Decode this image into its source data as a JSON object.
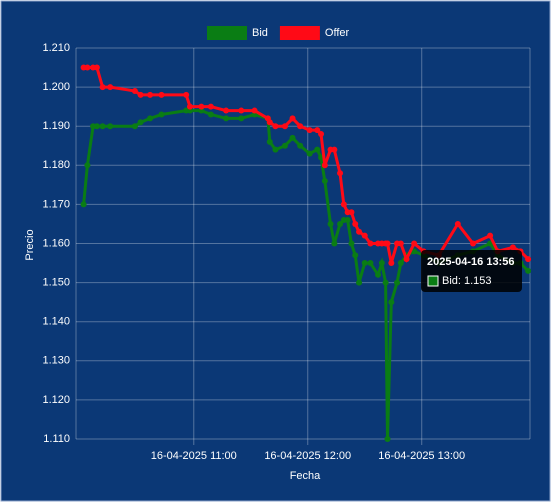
{
  "chart_data": {
    "type": "line",
    "x_label": "Fecha",
    "y_label": "Precio",
    "x": [
      "2025-04-16 10:02",
      "2025-04-16 10:04",
      "2025-04-16 10:07",
      "2025-04-16 10:09",
      "2025-04-16 10:12",
      "2025-04-16 10:16",
      "2025-04-16 10:29",
      "2025-04-16 10:32",
      "2025-04-16 10:37",
      "2025-04-16 10:43",
      "2025-04-16 10:56",
      "2025-04-16 10:58",
      "2025-04-16 11:04",
      "2025-04-16 11:09",
      "2025-04-16 11:17",
      "2025-04-16 11:25",
      "2025-04-16 11:32",
      "2025-04-16 11:39",
      "2025-04-16 11:40",
      "2025-04-16 11:43",
      "2025-04-16 11:48",
      "2025-04-16 11:52",
      "2025-04-16 11:56",
      "2025-04-16 12:01",
      "2025-04-16 12:05",
      "2025-04-16 12:07",
      "2025-04-16 12:09",
      "2025-04-16 12:12",
      "2025-04-16 12:14",
      "2025-04-16 12:17",
      "2025-04-16 12:19",
      "2025-04-16 12:21",
      "2025-04-16 12:23",
      "2025-04-16 12:25",
      "2025-04-16 12:27",
      "2025-04-16 12:30",
      "2025-04-16 12:33",
      "2025-04-16 12:37",
      "2025-04-16 12:39",
      "2025-04-16 12:41",
      "2025-04-16 12:42",
      "2025-04-16 12:44",
      "2025-04-16 12:47",
      "2025-04-16 12:49",
      "2025-04-16 12:52",
      "2025-04-16 12:56",
      "2025-04-16 13:01",
      "2025-04-16 13:09",
      "2025-04-16 13:19",
      "2025-04-16 13:27",
      "2025-04-16 13:36",
      "2025-04-16 13:40",
      "2025-04-16 13:48",
      "2025-04-16 13:52",
      "2025-04-16 13:56"
    ],
    "series": [
      {
        "name": "Bid",
        "color": "#0a7d14",
        "values": [
          1.17,
          1.18,
          1.19,
          1.19,
          1.19,
          1.19,
          1.19,
          1.191,
          1.192,
          1.193,
          1.194,
          1.194,
          1.194,
          1.193,
          1.192,
          1.192,
          1.193,
          1.192,
          1.186,
          1.184,
          1.185,
          1.187,
          1.185,
          1.183,
          1.184,
          1.182,
          1.176,
          1.165,
          1.16,
          1.165,
          1.166,
          1.166,
          1.16,
          1.157,
          1.15,
          1.155,
          1.155,
          1.152,
          1.155,
          1.15,
          1.11,
          1.145,
          1.15,
          1.155,
          1.157,
          1.158,
          1.157,
          1.155,
          1.157,
          1.158,
          1.16,
          1.157,
          1.155,
          1.155,
          1.153
        ]
      },
      {
        "name": "Offer",
        "color": "#ff0a16",
        "values": [
          1.205,
          1.205,
          1.205,
          1.205,
          1.2,
          1.2,
          1.199,
          1.198,
          1.198,
          1.198,
          1.198,
          1.195,
          1.195,
          1.195,
          1.194,
          1.194,
          1.194,
          1.192,
          1.191,
          1.19,
          1.19,
          1.192,
          1.19,
          1.189,
          1.189,
          1.188,
          1.18,
          1.184,
          1.184,
          1.178,
          1.17,
          1.168,
          1.168,
          1.165,
          1.163,
          1.162,
          1.16,
          1.16,
          1.16,
          1.16,
          1.16,
          1.155,
          1.16,
          1.16,
          1.156,
          1.16,
          1.158,
          1.157,
          1.165,
          1.16,
          1.162,
          1.158,
          1.159,
          1.158,
          1.156
        ]
      }
    ],
    "xlim": [
      "2025-04-16 09:58",
      "2025-04-16 13:57"
    ],
    "xticks": [
      {
        "value": "2025-04-16 11:00",
        "label": "16-04-2025 11:00"
      },
      {
        "value": "2025-04-16 12:00",
        "label": "16-04-2025 12:00"
      },
      {
        "value": "2025-04-16 13:00",
        "label": "16-04-2025 13:00"
      }
    ],
    "ylim": [
      1.11,
      1.21
    ],
    "yticks": [
      {
        "value": 1.11,
        "label": "1.110"
      },
      {
        "value": 1.12,
        "label": "1.120"
      },
      {
        "value": 1.13,
        "label": "1.130"
      },
      {
        "value": 1.14,
        "label": "1.140"
      },
      {
        "value": 1.15,
        "label": "1.150"
      },
      {
        "value": 1.16,
        "label": "1.160"
      },
      {
        "value": 1.17,
        "label": "1.170"
      },
      {
        "value": 1.18,
        "label": "1.180"
      },
      {
        "value": 1.19,
        "label": "1.190"
      },
      {
        "value": 1.2,
        "label": "1.200"
      },
      {
        "value": 1.21,
        "label": "1.210"
      }
    ],
    "grid": true,
    "legend": "top",
    "tooltip": {
      "title": "2025-04-16 13:56",
      "label": "Bid: 1.153"
    }
  }
}
